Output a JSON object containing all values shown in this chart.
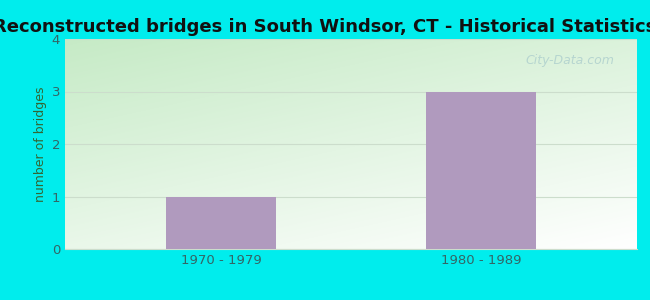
{
  "title": "Reconstructed bridges in South Windsor, CT - Historical Statistics",
  "categories": [
    "1970 - 1979",
    "1980 - 1989"
  ],
  "values": [
    1,
    3
  ],
  "bar_color": "#b09abe",
  "ylim": [
    0,
    4
  ],
  "yticks": [
    0,
    1,
    2,
    3,
    4
  ],
  "ylabel": "number of bridges",
  "title_fontsize": 13,
  "label_fontsize": 9,
  "tick_fontsize": 9.5,
  "outer_bg_color": "#00eded",
  "gradient_top_left": "#c8e8c8",
  "gradient_bottom_right": "#f8fff8",
  "watermark": "City-Data.com",
  "ylabel_color": "#336633",
  "tick_color": "#336666",
  "title_color": "#111111",
  "grid_color": "#ccddcc",
  "bar_width": 0.42
}
